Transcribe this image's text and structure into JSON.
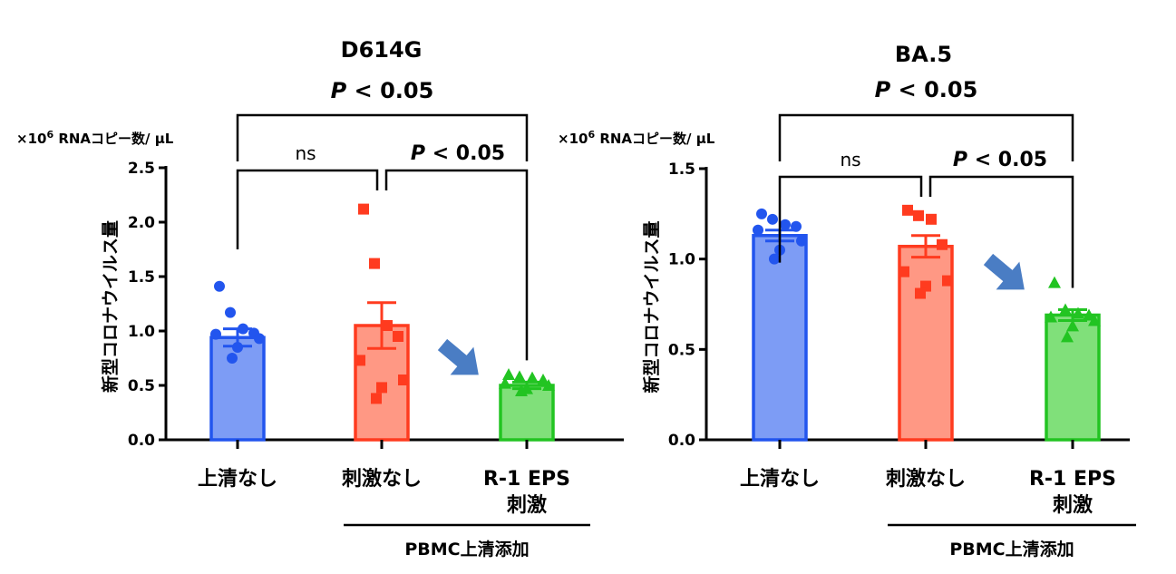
{
  "chart_data": [
    {
      "type": "bar",
      "title": "D614G",
      "unit_label": "×10⁶ RNAコピー数/ μL",
      "ylabel": "新型コロナウイルス量",
      "ylim": [
        0,
        2.5
      ],
      "yticks": [
        "0.0",
        "0.5",
        "1.0",
        "1.5",
        "2.0",
        "2.5"
      ],
      "yticks_values": [
        0,
        0.5,
        1.0,
        1.5,
        2.0,
        2.5
      ],
      "categories": [
        "上清なし",
        "刺激なし",
        "R-1 EPS\n刺激"
      ],
      "group_label": "PBMC上清添加",
      "bars": [
        {
          "category": "上清なし",
          "mean": 0.94,
          "sem": 0.08,
          "color": "#2255ee",
          "fill": "#7d9cf5",
          "marker": "circle",
          "points": [
            1.41,
            1.17,
            1.02,
            0.98,
            0.97,
            0.93,
            0.85,
            0.75
          ]
        },
        {
          "category": "刺激なし",
          "mean": 1.05,
          "sem": 0.21,
          "color": "#ff3b1f",
          "fill": "#ff9884",
          "marker": "square",
          "points": [
            2.12,
            1.62,
            1.05,
            0.95,
            0.73,
            0.55,
            0.48,
            0.38
          ]
        },
        {
          "category": "R-1 EPS\n刺激",
          "mean": 0.5,
          "sem": 0.03,
          "color": "#22c422",
          "fill": "#80e07a",
          "marker": "triangle",
          "points": [
            0.6,
            0.58,
            0.57,
            0.55,
            0.52,
            0.5,
            0.47,
            0.45
          ]
        }
      ],
      "annotations": {
        "top": "P < 0.05",
        "ns": "ns",
        "inner": "P < 0.05"
      }
    },
    {
      "type": "bar",
      "title": "BA.5",
      "unit_label": "×10⁶ RNAコピー数/ μL",
      "ylabel": "新型コロナウイルス量",
      "ylim": [
        0,
        1.5
      ],
      "yticks": [
        "0.0",
        "0.5",
        "1.0",
        "1.5"
      ],
      "yticks_values": [
        0,
        0.5,
        1.0,
        1.5
      ],
      "categories": [
        "上清なし",
        "刺激なし",
        "R-1 EPS\n刺激"
      ],
      "group_label": "PBMC上清添加",
      "bars": [
        {
          "category": "上清なし",
          "mean": 1.13,
          "sem": 0.03,
          "color": "#2255ee",
          "fill": "#7d9cf5",
          "marker": "circle",
          "points": [
            1.25,
            1.22,
            1.19,
            1.18,
            1.16,
            1.1,
            1.05,
            1.0
          ]
        },
        {
          "category": "刺激なし",
          "mean": 1.07,
          "sem": 0.06,
          "color": "#ff3b1f",
          "fill": "#ff9884",
          "marker": "square",
          "points": [
            1.27,
            1.24,
            1.22,
            1.08,
            0.93,
            0.88,
            0.85,
            0.81
          ]
        },
        {
          "category": "R-1 EPS\n刺激",
          "mean": 0.69,
          "sem": 0.03,
          "color": "#22c422",
          "fill": "#80e07a",
          "marker": "triangle",
          "points": [
            0.87,
            0.72,
            0.7,
            0.69,
            0.68,
            0.66,
            0.63,
            0.57
          ]
        }
      ],
      "annotations": {
        "top": "P < 0.05",
        "ns": "ns",
        "inner": "P < 0.05"
      }
    }
  ],
  "arrow_color": "#4a7dc4",
  "axis_color": "#000000"
}
